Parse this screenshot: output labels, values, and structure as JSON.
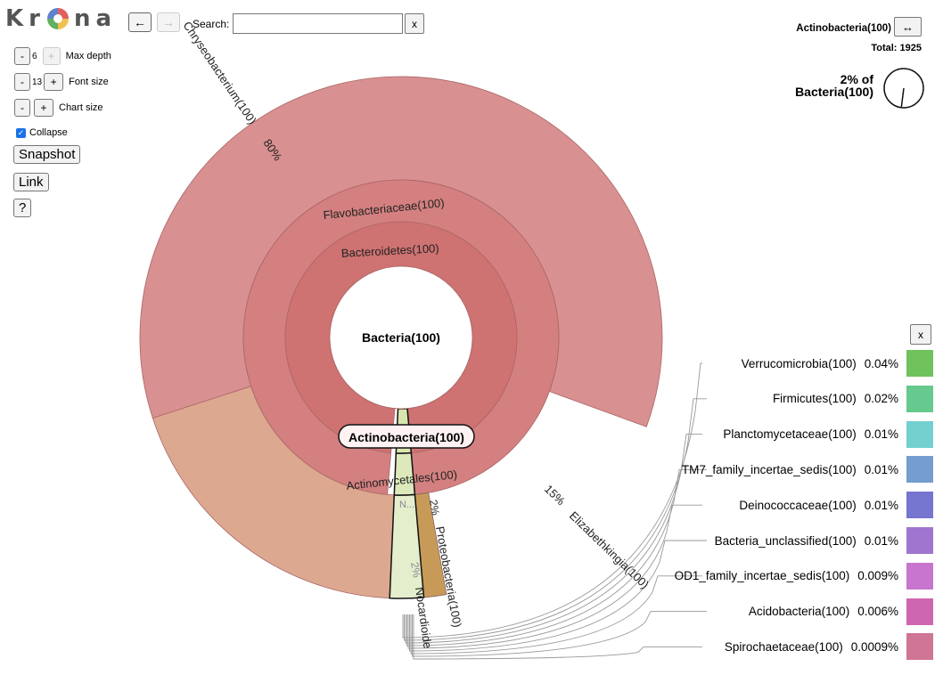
{
  "logo": "Kr na",
  "toolbar": {
    "back_label": "←",
    "forward_label": "→",
    "search_label": "Search:",
    "search_value": "",
    "clear_label": "x"
  },
  "controls": {
    "max_depth": {
      "minus": "-",
      "value": "6",
      "plus": "+",
      "label": "Max depth"
    },
    "font_size": {
      "minus": "-",
      "value": "13",
      "plus": "+",
      "label": "Font size"
    },
    "chart_size": {
      "minus": "-",
      "plus": "+",
      "label": "Chart size"
    },
    "collapse": {
      "label": "Collapse",
      "checked": true
    },
    "snapshot_label": "Snapshot",
    "link_label": "Link",
    "help_label": "?"
  },
  "info": {
    "selected": "Actinobacteria(100)",
    "expand_label": "↔",
    "total": "Total: 1925",
    "pct_line1": "2% of",
    "pct_line2": "Bacteria(100)",
    "pct_fraction": 0.02
  },
  "chart": {
    "center_label": "Bacteria(100)",
    "bacteroidetes": "Bacteroidetes(100)",
    "flavobacteriaceae": "Flavobacteriaceae(100)",
    "chryseobacterium": "Chryseobacterium(100)",
    "chryseo_pct": "80%",
    "elizabethkingia": "Elizabethkingia(100)",
    "elizabeth_pct": "15%",
    "actinobacteria": "Actinobacteria(100)",
    "actinomycetales": "Actinomycetales(100)",
    "proteobacteria": "Proteobacteria(100)",
    "proteo_pct": "2%",
    "nocardioide": "Nocardioide",
    "nocard_pct": "2%",
    "n_label": "N..."
  },
  "legend": {
    "close_label": "x",
    "items": [
      {
        "name": "Verrucomicrobia(100)",
        "pct": "0.04%",
        "color": "#6fc25c"
      },
      {
        "name": "Firmicutes(100)",
        "pct": "0.02%",
        "color": "#66c98d"
      },
      {
        "name": "Planctomycetaceae(100)",
        "pct": "0.01%",
        "color": "#74cfcf"
      },
      {
        "name": "TM7_family_incertae_sedis(100)",
        "pct": "0.01%",
        "color": "#759dcf"
      },
      {
        "name": "Deinococcaceae(100)",
        "pct": "0.01%",
        "color": "#7675cf"
      },
      {
        "name": "Bacteria_unclassified(100)",
        "pct": "0.01%",
        "color": "#9f75cf"
      },
      {
        "name": "OD1_family_incertae_sedis(100)",
        "pct": "0.009%",
        "color": "#c875cf"
      },
      {
        "name": "Acidobacteria(100)",
        "pct": "0.006%",
        "color": "#cf66b2"
      },
      {
        "name": "Spirochaetaceae(100)",
        "pct": "0.0009%",
        "color": "#cf7595"
      }
    ]
  }
}
